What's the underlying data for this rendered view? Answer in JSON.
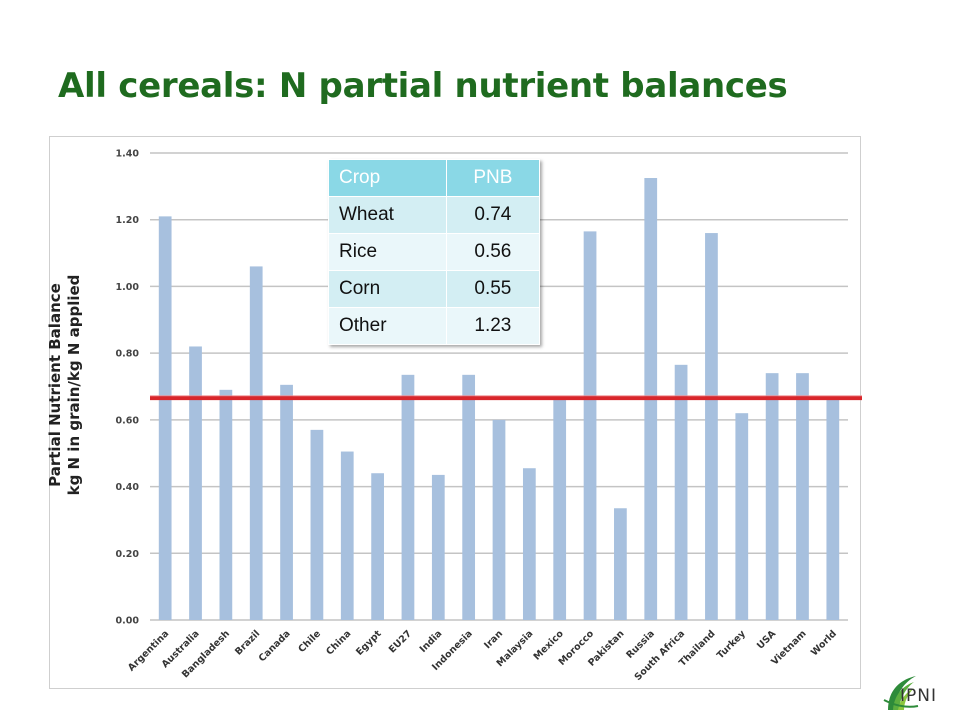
{
  "slide": {
    "title": "All cereals: N partial nutrient balances"
  },
  "chart_data": {
    "type": "bar",
    "ylabel_line1": "Partial Nutrient Balance",
    "ylabel_line2": "kg N in grain/kg N applied",
    "ylim": [
      0,
      1.4
    ],
    "yticks": [
      "0.00",
      "0.20",
      "0.40",
      "0.60",
      "0.80",
      "1.00",
      "1.20",
      "1.40"
    ],
    "grid": true,
    "bar_color": "#a7c0de",
    "reference_line": {
      "value": 0.665,
      "color": "#d9262b"
    },
    "categories": [
      "Argentina",
      "Australia",
      "Bangladesh",
      "Brazil",
      "Canada",
      "Chile",
      "China",
      "Egypt",
      "EU27",
      "India",
      "Indonesia",
      "Iran",
      "Malaysia",
      "Mexico",
      "Morocco",
      "Pakistan",
      "Russia",
      "South Africa",
      "Thailand",
      "Turkey",
      "USA",
      "Vietnam",
      "World"
    ],
    "values": [
      1.21,
      0.82,
      0.69,
      1.06,
      0.705,
      0.57,
      0.505,
      0.44,
      0.735,
      0.435,
      0.735,
      0.6,
      0.455,
      0.665,
      1.165,
      0.335,
      1.325,
      0.765,
      1.16,
      0.62,
      0.74,
      0.74,
      0.67
    ]
  },
  "table": {
    "headers": [
      "Crop",
      "PNB"
    ],
    "rows": [
      {
        "crop": "Wheat",
        "pnb": "0.74"
      },
      {
        "crop": "Rice",
        "pnb": "0.56"
      },
      {
        "crop": "Corn",
        "pnb": "0.55"
      },
      {
        "crop": "Other",
        "pnb": "1.23"
      }
    ]
  },
  "logo": {
    "text": "IPNI",
    "icon": "ipni-leaf-logo-icon"
  }
}
